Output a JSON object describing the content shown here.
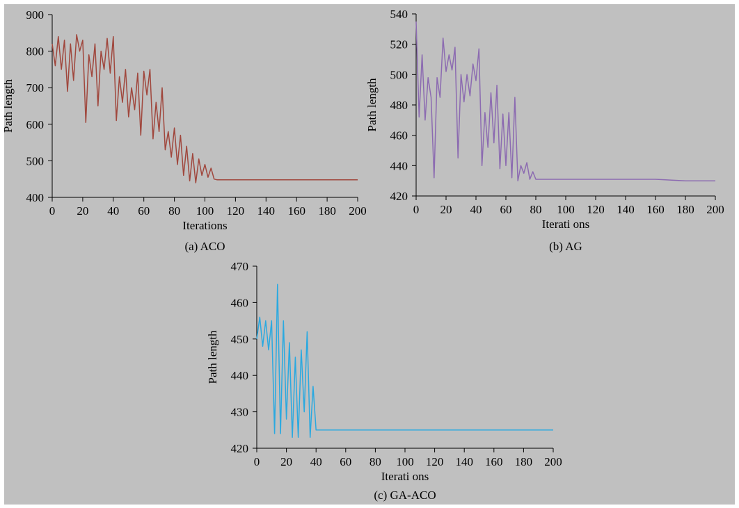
{
  "background_color": "#c0c0c0",
  "chart_data": [
    {
      "type": "line",
      "caption": "(a) ACO",
      "xlabel": "Iterations",
      "ylabel": "Path length",
      "xlim": [
        0,
        200
      ],
      "ylim": [
        400,
        900
      ],
      "xticks": [
        0,
        20,
        40,
        60,
        80,
        100,
        120,
        140,
        160,
        180,
        200
      ],
      "yticks": [
        400,
        500,
        600,
        700,
        800,
        900
      ],
      "grid": false,
      "series": [
        {
          "color": "#a0473d",
          "x": [
            0,
            2,
            4,
            6,
            8,
            10,
            12,
            14,
            16,
            18,
            20,
            22,
            24,
            26,
            28,
            30,
            32,
            34,
            36,
            38,
            40,
            42,
            44,
            46,
            48,
            50,
            52,
            54,
            56,
            58,
            60,
            62,
            64,
            66,
            68,
            70,
            72,
            74,
            76,
            78,
            80,
            82,
            84,
            86,
            88,
            90,
            92,
            94,
            96,
            98,
            100,
            102,
            104,
            106,
            108,
            120,
            140,
            160,
            180,
            200
          ],
          "y": [
            820,
            760,
            840,
            750,
            830,
            690,
            820,
            720,
            845,
            800,
            830,
            605,
            790,
            730,
            820,
            650,
            800,
            750,
            835,
            740,
            840,
            610,
            730,
            660,
            750,
            620,
            700,
            640,
            740,
            570,
            745,
            680,
            750,
            560,
            660,
            580,
            700,
            530,
            580,
            510,
            590,
            490,
            570,
            460,
            540,
            445,
            520,
            440,
            505,
            460,
            490,
            455,
            480,
            450,
            448,
            448,
            448,
            448,
            448,
            448
          ]
        }
      ]
    },
    {
      "type": "line",
      "caption": "(b) AG",
      "xlabel": "Iterati ons",
      "ylabel": "Path length",
      "xlim": [
        0,
        200
      ],
      "ylim": [
        420,
        540
      ],
      "xticks": [
        0,
        20,
        40,
        60,
        80,
        100,
        120,
        140,
        160,
        180,
        200
      ],
      "yticks": [
        420,
        440,
        460,
        480,
        500,
        520,
        540
      ],
      "grid": false,
      "series": [
        {
          "color": "#8c6bb1",
          "x": [
            0,
            2,
            4,
            6,
            8,
            10,
            12,
            14,
            16,
            18,
            20,
            22,
            24,
            26,
            28,
            30,
            32,
            34,
            36,
            38,
            40,
            42,
            44,
            46,
            48,
            50,
            52,
            54,
            56,
            58,
            60,
            62,
            64,
            66,
            68,
            70,
            72,
            74,
            76,
            78,
            80,
            100,
            120,
            140,
            160,
            180,
            200
          ],
          "y": [
            535,
            472,
            513,
            470,
            498,
            485,
            432,
            498,
            485,
            524,
            502,
            513,
            503,
            518,
            445,
            500,
            482,
            500,
            486,
            507,
            496,
            517,
            440,
            475,
            452,
            488,
            455,
            493,
            438,
            474,
            440,
            475,
            432,
            485,
            430,
            440,
            435,
            442,
            431,
            436,
            431,
            431,
            431,
            431,
            431,
            430,
            430
          ]
        }
      ]
    },
    {
      "type": "line",
      "caption": "(c)  GA-ACO",
      "xlabel": "Iterati ons",
      "ylabel": "Path length",
      "xlim": [
        0,
        200
      ],
      "ylim": [
        420,
        470
      ],
      "xticks": [
        0,
        20,
        40,
        60,
        80,
        100,
        120,
        140,
        160,
        180,
        200
      ],
      "yticks": [
        420,
        430,
        440,
        450,
        460,
        470
      ],
      "grid": false,
      "series": [
        {
          "color": "#2aa9e0",
          "x": [
            0,
            2,
            4,
            6,
            8,
            10,
            12,
            14,
            16,
            18,
            20,
            22,
            24,
            26,
            28,
            30,
            32,
            34,
            36,
            38,
            40,
            60,
            80,
            100,
            120,
            140,
            160,
            180,
            200
          ],
          "y": [
            450,
            456,
            448,
            455,
            447,
            455,
            424,
            465,
            424,
            455,
            428,
            449,
            423,
            445,
            423,
            447,
            430,
            452,
            423,
            437,
            425,
            425,
            425,
            425,
            425,
            425,
            425,
            425,
            425
          ]
        }
      ]
    }
  ]
}
